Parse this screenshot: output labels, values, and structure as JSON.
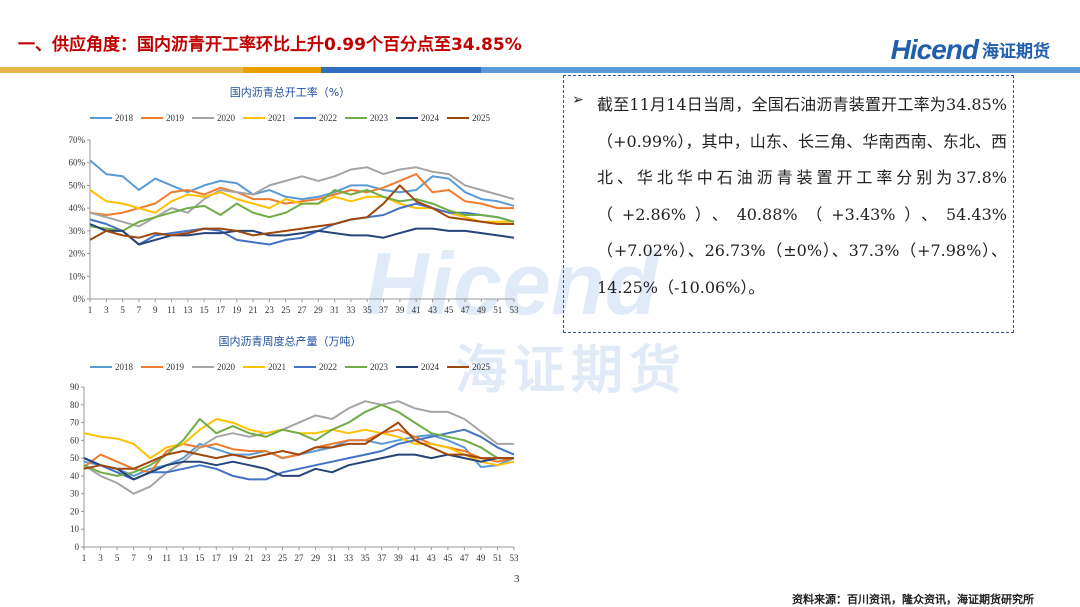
{
  "header": {
    "title": "一、供应角度：国内沥青开工率环比上升0.99个百分点至34.85%",
    "logo_en": "Hicend",
    "logo_cn": "海证期货"
  },
  "colors": {
    "title": "#c00000",
    "brand": "#1f5fad",
    "bar_segments": [
      "#e8b64a",
      "#e8a000",
      "#2f6fbf",
      "#5a9bd5"
    ]
  },
  "watermark": {
    "en": "Hicend",
    "cn": "海证期货"
  },
  "textbox": {
    "bullet": "➢",
    "text": "截至11月14日当周，全国石油沥青装置开工率为34.85%（+0.99%），其中，山东、长三角、华南西南、东北、西北、华北华中石油沥青装置开工率分别为37.8%（+2.86%）、40.88%（+3.43%）、54.43%（+7.02%）、26.73%（±0%）、37.3%（+7.98%）、14.25%（-10.06%）。"
  },
  "footer": {
    "page_number": "3",
    "source": "资料来源：百川资讯，隆众资讯，海证期货研究所"
  },
  "chart_data": [
    {
      "type": "line",
      "title": "国内沥青总开工率（%）",
      "x": [
        1,
        3,
        5,
        7,
        9,
        11,
        13,
        15,
        17,
        19,
        21,
        23,
        25,
        27,
        29,
        31,
        33,
        35,
        37,
        39,
        41,
        43,
        45,
        47,
        49,
        51,
        53
      ],
      "ylim": [
        0,
        70
      ],
      "yticks": [
        "0%",
        "10%",
        "20%",
        "30%",
        "40%",
        "50%",
        "60%",
        "70%"
      ],
      "series": [
        {
          "name": "2018",
          "color": "#5b9bd5",
          "values": [
            61,
            55,
            54,
            48,
            53,
            50,
            47,
            50,
            52,
            51,
            46,
            48,
            45,
            44,
            45,
            47,
            50,
            50,
            48,
            47,
            48,
            54,
            53,
            47,
            44,
            43,
            41
          ]
        },
        {
          "name": "2019",
          "color": "#ed7d31",
          "values": [
            38,
            37,
            38,
            40,
            42,
            47,
            48,
            46,
            49,
            47,
            44,
            44,
            42,
            43,
            44,
            46,
            48,
            47,
            49,
            52,
            55,
            47,
            48,
            43,
            42,
            40,
            40
          ]
        },
        {
          "name": "2020",
          "color": "#a5a5a5",
          "values": [
            38,
            36,
            34,
            32,
            36,
            40,
            38,
            44,
            48,
            47,
            46,
            50,
            52,
            54,
            52,
            54,
            57,
            58,
            55,
            57,
            58,
            56,
            55,
            50,
            48,
            46,
            44
          ]
        },
        {
          "name": "2021",
          "color": "#ffc000",
          "values": [
            48,
            43,
            42,
            40,
            38,
            43,
            46,
            45,
            47,
            44,
            42,
            40,
            44,
            42,
            42,
            45,
            43,
            45,
            45,
            42,
            40,
            40,
            38,
            36,
            34,
            34,
            34
          ]
        },
        {
          "name": "2022",
          "color": "#4472c4",
          "values": [
            35,
            33,
            30,
            24,
            28,
            29,
            30,
            31,
            30,
            26,
            25,
            24,
            26,
            27,
            30,
            33,
            35,
            36,
            37,
            40,
            42,
            40,
            38,
            38,
            37,
            36,
            34
          ]
        },
        {
          "name": "2023",
          "color": "#70ad47",
          "values": [
            32,
            31,
            30,
            34,
            36,
            38,
            40,
            41,
            37,
            42,
            38,
            36,
            38,
            42,
            42,
            48,
            46,
            48,
            45,
            43,
            44,
            42,
            39,
            37,
            37,
            36,
            34
          ]
        },
        {
          "name": "2024",
          "color": "#264478",
          "values": [
            33,
            30,
            30,
            24,
            26,
            28,
            28,
            29,
            29,
            30,
            30,
            28,
            28,
            29,
            30,
            29,
            28,
            28,
            27,
            29,
            31,
            31,
            30,
            30,
            29,
            28,
            27
          ]
        },
        {
          "name": "2025",
          "color": "#9e480e",
          "values": [
            26,
            30,
            28,
            27,
            29,
            28,
            29,
            31,
            31,
            30,
            28,
            29,
            30,
            31,
            32,
            33,
            35,
            36,
            42,
            50,
            43,
            40,
            36,
            35,
            34,
            33,
            33
          ]
        }
      ]
    },
    {
      "type": "line",
      "title": "国内沥青周度总产量（万吨）",
      "x": [
        1,
        3,
        5,
        7,
        9,
        11,
        13,
        15,
        17,
        19,
        21,
        23,
        25,
        27,
        29,
        31,
        33,
        35,
        37,
        39,
        41,
        43,
        45,
        47,
        49,
        51,
        53
      ],
      "ylim": [
        0,
        90
      ],
      "yticks": [
        "0",
        "10",
        "20",
        "30",
        "40",
        "50",
        "60",
        "70",
        "80",
        "90"
      ],
      "series": [
        {
          "name": "2018",
          "color": "#5b9bd5",
          "values": [
            48,
            46,
            44,
            40,
            44,
            46,
            50,
            58,
            55,
            52,
            52,
            54,
            50,
            52,
            54,
            56,
            60,
            60,
            58,
            60,
            62,
            63,
            60,
            56,
            45,
            46,
            50
          ]
        },
        {
          "name": "2019",
          "color": "#ed7d31",
          "values": [
            45,
            52,
            48,
            44,
            42,
            54,
            58,
            56,
            58,
            55,
            54,
            54,
            50,
            52,
            56,
            58,
            60,
            60,
            64,
            66,
            62,
            58,
            56,
            54,
            50,
            48,
            50
          ]
        },
        {
          "name": "2020",
          "color": "#a5a5a5",
          "values": [
            46,
            40,
            36,
            30,
            34,
            42,
            48,
            56,
            62,
            64,
            62,
            64,
            66,
            70,
            74,
            72,
            78,
            82,
            80,
            82,
            78,
            76,
            76,
            72,
            65,
            58,
            58
          ]
        },
        {
          "name": "2021",
          "color": "#ffc000",
          "values": [
            64,
            62,
            61,
            58,
            50,
            56,
            58,
            66,
            72,
            70,
            66,
            64,
            66,
            64,
            64,
            66,
            64,
            66,
            64,
            62,
            58,
            58,
            56,
            52,
            48,
            46,
            48
          ]
        },
        {
          "name": "2022",
          "color": "#4472c4",
          "values": [
            50,
            46,
            42,
            38,
            42,
            42,
            44,
            46,
            44,
            40,
            38,
            38,
            42,
            44,
            46,
            48,
            50,
            52,
            54,
            58,
            60,
            62,
            64,
            66,
            62,
            56,
            52
          ]
        },
        {
          "name": "2023",
          "color": "#70ad47",
          "values": [
            46,
            42,
            40,
            42,
            46,
            52,
            60,
            72,
            64,
            68,
            64,
            62,
            66,
            64,
            60,
            66,
            70,
            76,
            80,
            76,
            70,
            64,
            62,
            60,
            56,
            50,
            50
          ]
        },
        {
          "name": "2024",
          "color": "#264478",
          "values": [
            50,
            46,
            44,
            38,
            42,
            46,
            48,
            48,
            46,
            48,
            46,
            44,
            40,
            40,
            44,
            42,
            46,
            48,
            50,
            52,
            52,
            50,
            52,
            50,
            48,
            50,
            50
          ]
        },
        {
          "name": "2025",
          "color": "#9e480e",
          "values": [
            44,
            46,
            44,
            44,
            48,
            52,
            54,
            52,
            50,
            52,
            50,
            52,
            54,
            52,
            56,
            56,
            58,
            58,
            64,
            70,
            60,
            56,
            52,
            52,
            50,
            50,
            50
          ]
        }
      ]
    }
  ]
}
